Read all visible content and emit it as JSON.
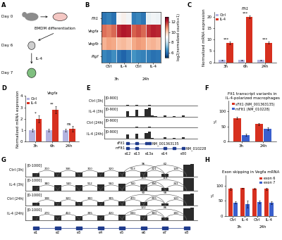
{
  "panel_a": {
    "panel": "A",
    "days": [
      "Day 0",
      "Day 6",
      "Day 7"
    ],
    "process": "BMDM differentiation",
    "treatment": "IL-4"
  },
  "chart_data": [
    {
      "type": "heatmap",
      "panel": "B",
      "rows": [
        "Flt1",
        "Vegfa",
        "Vegfb",
        "Pigf"
      ],
      "conditions": [
        "Ctrl",
        "IL-4",
        "Ctrl",
        "IL-4"
      ],
      "times": [
        "3h",
        "24h"
      ],
      "cells": [
        [
          6.1,
          6.3,
          6.0,
          9.0,
          9.2,
          8.9,
          6.2,
          6.4,
          6.1,
          8.7,
          8.9,
          8.8
        ],
        [
          11.2,
          11.0,
          11.3,
          12.0,
          12.2,
          12.1,
          11.4,
          11.6,
          11.3,
          11.9,
          12.1,
          12.0
        ],
        [
          10.4,
          10.6,
          10.5,
          10.2,
          10.3,
          10.1,
          10.5,
          10.7,
          10.6,
          10.3,
          10.4,
          10.2
        ],
        [
          6.4,
          6.2,
          6.5,
          6.0,
          5.8,
          6.1,
          6.6,
          6.4,
          6.3,
          6.2,
          6.0,
          6.1
        ]
      ],
      "colorbar": {
        "range": [
          5,
          13
        ],
        "ticks": [
          6,
          8,
          10,
          12
        ],
        "label": "log2(normalized counts+1)"
      }
    },
    {
      "type": "bar",
      "panel": "C",
      "title": "Flt1",
      "ylabel": "Normalized mRNA expression",
      "categories": [
        "3h",
        "6h",
        "24h"
      ],
      "series": [
        {
          "name": "Ctrl",
          "color": "#b3b3e0",
          "values": [
            1,
            1,
            1
          ],
          "errors": [
            0.1,
            0.1,
            0.1
          ]
        },
        {
          "name": "IL-4",
          "color": "#d7301f",
          "values": [
            8.5,
            19.8,
            8.6
          ],
          "errors": [
            0.5,
            0.6,
            0.4
          ]
        }
      ],
      "significance": [
        "***",
        "***",
        "***"
      ],
      "ylim": [
        0,
        22
      ],
      "yticks": [
        0,
        5,
        10,
        15,
        20
      ],
      "legend": "upper left"
    },
    {
      "type": "bar",
      "panel": "D",
      "title": "Vegfa",
      "ylabel": "Normalized mRNA expression",
      "categories": [
        "3h",
        "6h",
        "24h"
      ],
      "series": [
        {
          "name": "Ctrl",
          "color": "#b3b3e0",
          "values": [
            1,
            1,
            1
          ],
          "errors": [
            0.1,
            0.15,
            0.1
          ]
        },
        {
          "name": "IL-4",
          "color": "#d7301f",
          "values": [
            2.0,
            2.8,
            1.1
          ],
          "errors": [
            0.3,
            0.3,
            0.25
          ]
        }
      ],
      "significance": [
        "*",
        "**",
        "ns"
      ],
      "ylim": [
        0,
        4
      ],
      "yticks": [
        0,
        1,
        2,
        3,
        4
      ],
      "legend": "upper left"
    },
    {
      "type": "bar",
      "panel": "F",
      "title": "Flt1 transcript variants in IL-4-polarized macrophages",
      "ylabel": "%",
      "categories": [
        "3h",
        "24h"
      ],
      "series": [
        {
          "name": "sFlt1 (NM_001363135)",
          "color": "#d7301f",
          "values": [
            78,
            58
          ],
          "errors": [
            3,
            4
          ]
        },
        {
          "name": "mFlt1 (NM_010228)",
          "color": "#3a5fcd",
          "values": [
            22,
            42
          ],
          "errors": [
            3,
            4
          ]
        }
      ],
      "ylim": [
        0,
        135
      ],
      "yticks": [
        0,
        50,
        100
      ],
      "legend": "upper right"
    },
    {
      "type": "bar",
      "panel": "H",
      "title": "Exon skipping in Vegfa mRNA",
      "ylabel": "%",
      "categories": [
        "Ctrl",
        "IL-4",
        "Ctrl",
        "IL-4"
      ],
      "groups": [
        "3h",
        "24h"
      ],
      "series": [
        {
          "name": "exon 6",
          "color": "#d7301f",
          "values": [
            90,
            92,
            91,
            90
          ],
          "errors": [
            3,
            2,
            3,
            3
          ]
        },
        {
          "name": "exon 7",
          "color": "#3a5fcd",
          "values": [
            45,
            40,
            46,
            44
          ],
          "errors": [
            4,
            12,
            5,
            4
          ]
        }
      ],
      "ylim": [
        0,
        135
      ],
      "yticks": [
        0,
        50,
        100
      ],
      "legend": "upper right"
    }
  ],
  "panel_e": {
    "panel": "E",
    "tracks": [
      {
        "name": "Ctrl (3h)",
        "range": [
          0,
          900
        ],
        "range_label": "[0-900]",
        "coverage": [
          0,
          0,
          0,
          0,
          0,
          0,
          0,
          40,
          0,
          0,
          50,
          0,
          0,
          30,
          60,
          10,
          0,
          0,
          0,
          20,
          0,
          0,
          10,
          0,
          0,
          30,
          0,
          0,
          0,
          0
        ]
      },
      {
        "name": "IL-4 (3h)",
        "range": [
          0,
          900
        ],
        "range_label": "[0-900]",
        "coverage": [
          0,
          0,
          0,
          0,
          0,
          0,
          0,
          520,
          20,
          20,
          610,
          30,
          30,
          700,
          850,
          120,
          20,
          10,
          0,
          90,
          0,
          0,
          60,
          0,
          0,
          110,
          0,
          0,
          0,
          0
        ]
      },
      {
        "name": "Ctrl (24h)",
        "range": [
          0,
          900
        ],
        "range_label": "[0-900]",
        "coverage": [
          0,
          0,
          0,
          0,
          0,
          0,
          0,
          60,
          0,
          0,
          70,
          0,
          0,
          40,
          80,
          10,
          0,
          0,
          0,
          30,
          0,
          0,
          20,
          0,
          0,
          40,
          0,
          0,
          0,
          0
        ]
      },
      {
        "name": "IL-4 (24h)",
        "range": [
          0,
          900
        ],
        "range_label": "[0-900]",
        "coverage": [
          0,
          0,
          0,
          0,
          0,
          0,
          0,
          430,
          20,
          20,
          480,
          20,
          20,
          560,
          690,
          90,
          10,
          10,
          0,
          110,
          0,
          0,
          80,
          0,
          0,
          140,
          0,
          0,
          0,
          0
        ]
      }
    ],
    "transcripts": [
      {
        "name": "sFlt1",
        "accession": "NM_001363135",
        "exons": [
          7,
          10,
          13,
          14
        ]
      },
      {
        "name": "mFlt1",
        "accession": "NM_010228",
        "exons": [
          7,
          10,
          19,
          22,
          25
        ]
      }
    ],
    "exon_labels": [
      {
        "label": "e12",
        "bin": 7
      },
      {
        "label": "e13",
        "bin": 10
      },
      {
        "label": "e13a",
        "bin": 14
      },
      {
        "label": "e14",
        "bin": 19
      },
      {
        "label": "e30",
        "bin": 25
      }
    ]
  },
  "panel_g": {
    "panel": "G",
    "junctions": [
      [
        1,
        4
      ],
      [
        4,
        7
      ],
      [
        7,
        10
      ],
      [
        10,
        13
      ],
      [
        13,
        16
      ],
      [
        16,
        19
      ],
      [
        19,
        22
      ],
      [
        13,
        19
      ],
      [
        16,
        22
      ]
    ],
    "tracks": [
      {
        "name": "Ctrl (3h)",
        "range": [
          0,
          1000
        ],
        "range_label": "[0-1000]",
        "coverage": [
          0,
          250,
          0,
          0,
          300,
          0,
          0,
          280,
          0,
          0,
          320,
          0,
          0,
          350,
          0,
          0,
          330,
          0,
          0,
          180,
          0,
          0,
          900,
          950
        ],
        "counts": [
          210,
          346,
          310,
          320,
          513,
          221,
          128,
          96,
          62
        ]
      },
      {
        "name": "IL-4 (3h)",
        "range": [
          0,
          1000
        ],
        "range_label": "[0-1000]",
        "coverage": [
          0,
          400,
          0,
          0,
          470,
          0,
          0,
          450,
          0,
          0,
          500,
          0,
          0,
          540,
          0,
          0,
          510,
          0,
          0,
          260,
          0,
          0,
          980,
          1000
        ],
        "counts": [
          380,
          540,
          512,
          560,
          740,
          396,
          241,
          153,
          118
        ]
      },
      {
        "name": "Ctrl (24h)",
        "range": [
          0,
          1000
        ],
        "range_label": "[0-1000]",
        "coverage": [
          0,
          230,
          0,
          0,
          280,
          0,
          0,
          260,
          0,
          0,
          300,
          0,
          0,
          320,
          0,
          0,
          300,
          0,
          0,
          170,
          0,
          0,
          850,
          900
        ],
        "counts": [
          198,
          320,
          300,
          305,
          470,
          205,
          120,
          90,
          58
        ]
      },
      {
        "name": "IL-4 (24h)",
        "range": [
          0,
          1000
        ],
        "range_label": "[0-1000]",
        "coverage": [
          0,
          300,
          0,
          0,
          360,
          0,
          0,
          340,
          0,
          0,
          380,
          0,
          0,
          410,
          0,
          0,
          390,
          0,
          0,
          200,
          0,
          0,
          920,
          960
        ],
        "counts": [
          270,
          410,
          395,
          420,
          600,
          300,
          190,
          122,
          86
        ]
      }
    ],
    "exons": [
      {
        "label": "e1",
        "bin": 1
      },
      {
        "label": "e2",
        "bin": 4
      },
      {
        "label": "e3",
        "bin": 7
      },
      {
        "label": "e4",
        "bin": 10
      },
      {
        "label": "e5",
        "bin": 13
      },
      {
        "label": "e6",
        "bin": 16
      },
      {
        "label": "e7",
        "bin": 19
      },
      {
        "label": "e8",
        "bin": 22
      }
    ]
  }
}
